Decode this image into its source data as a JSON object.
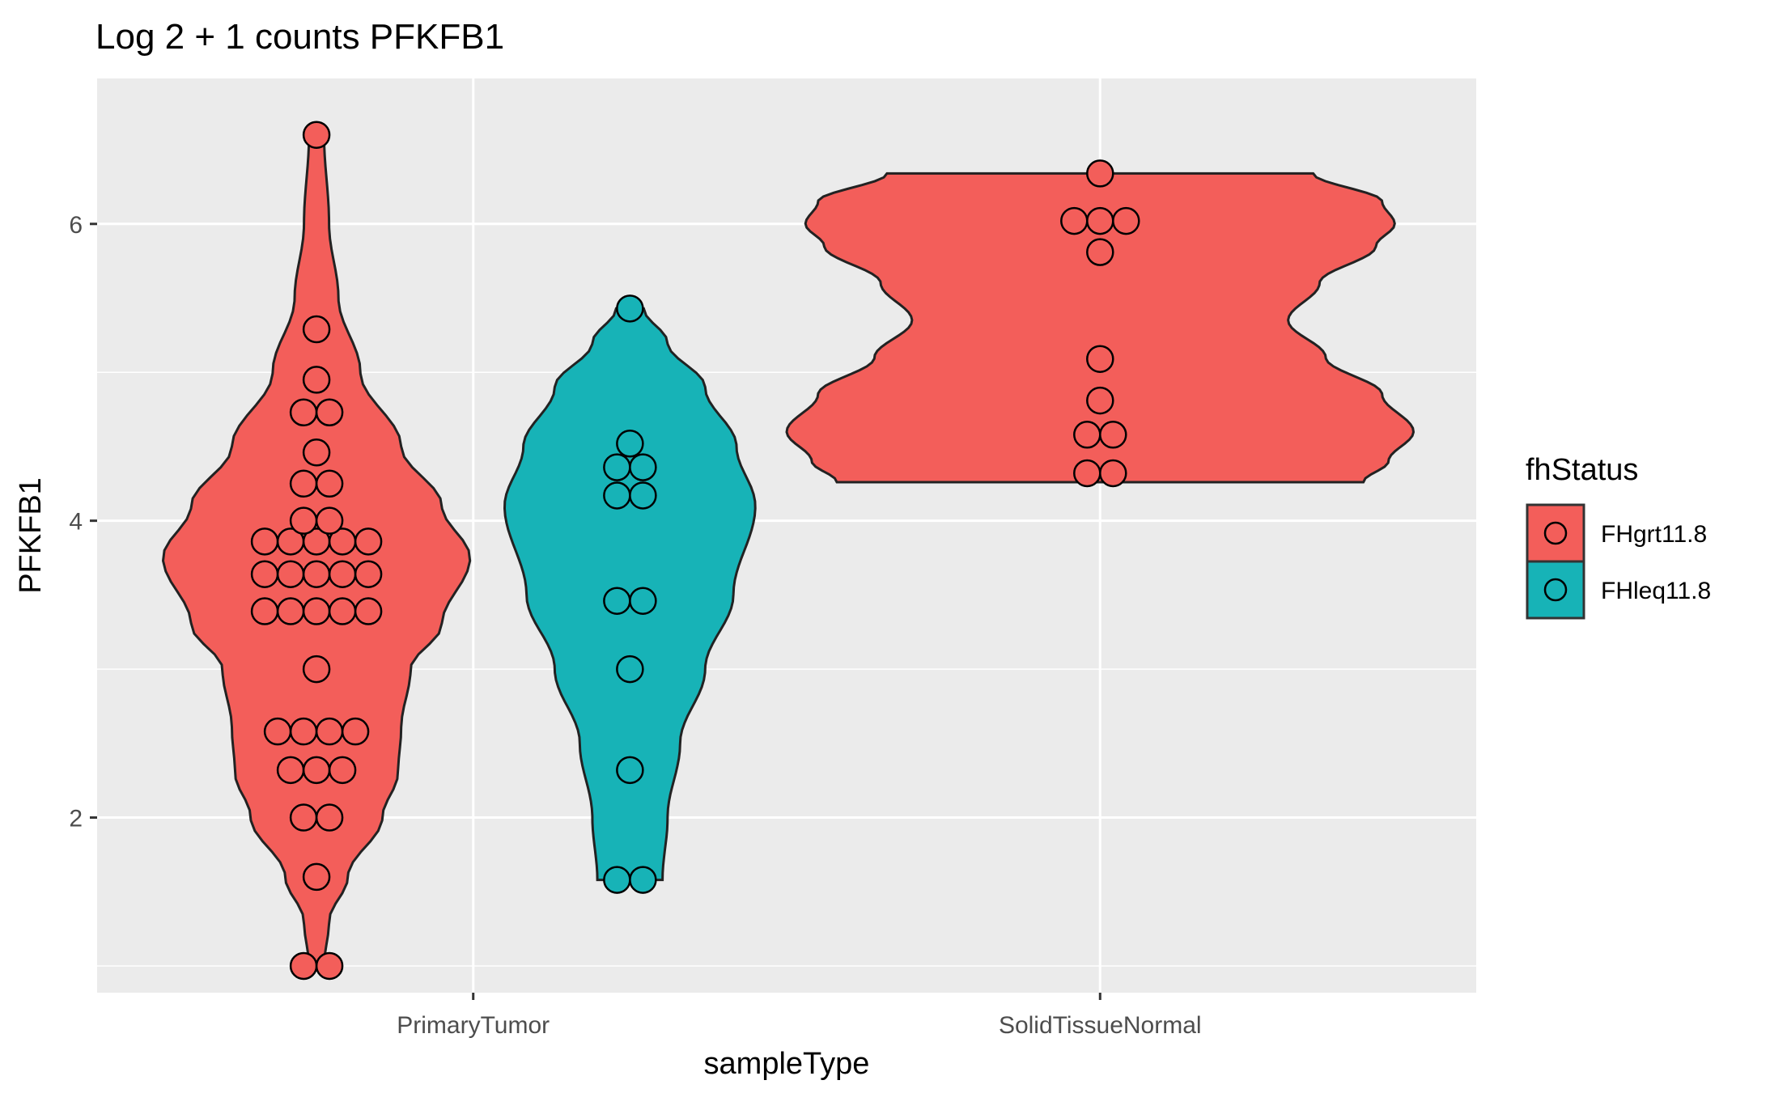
{
  "chart_data": {
    "type": "violin",
    "title": "Log 2 + 1 counts PFKFB1",
    "xlabel": "sampleType",
    "ylabel": "PFKFB1",
    "categories": [
      "PrimaryTumor",
      "SolidTissueNormal"
    ],
    "ylim": [
      0.82,
      6.98
    ],
    "yticks": [
      2,
      4,
      6
    ],
    "grid": true,
    "legend": {
      "title": "fhStatus",
      "position": "right",
      "entries": [
        {
          "label": "FHgrt11.8",
          "color": "#F35E5A"
        },
        {
          "label": "FHleq11.8",
          "color": "#17B3B7"
        }
      ]
    },
    "series": [
      {
        "name": "FHgrt11.8",
        "color": "#F35E5A",
        "groups": [
          {
            "category": "PrimaryTumor",
            "offset": -0.25,
            "values": [
              1.0,
              1.0,
              1.6,
              2.0,
              2.0,
              2.32,
              2.32,
              2.32,
              2.58,
              2.58,
              2.58,
              2.58,
              3.0,
              3.39,
              3.39,
              3.39,
              3.39,
              3.39,
              3.64,
              3.64,
              3.64,
              3.64,
              3.64,
              3.86,
              3.86,
              3.86,
              3.86,
              3.86,
              4.0,
              4.0,
              4.25,
              4.25,
              4.46,
              4.73,
              4.73,
              4.95,
              5.29,
              6.6
            ],
            "violin": [
              [
                1.0,
                0.012
              ],
              [
                1.3,
                0.02
              ],
              [
                1.6,
                0.05
              ],
              [
                2.0,
                0.105
              ],
              [
                2.3,
                0.13
              ],
              [
                2.6,
                0.135
              ],
              [
                3.0,
                0.15
              ],
              [
                3.3,
                0.2
              ],
              [
                3.75,
                0.245
              ],
              [
                4.1,
                0.2
              ],
              [
                4.5,
                0.135
              ],
              [
                5.0,
                0.07
              ],
              [
                5.5,
                0.035
              ],
              [
                6.0,
                0.02
              ],
              [
                6.6,
                0.012
              ]
            ]
          },
          {
            "category": "SolidTissueNormal",
            "offset": 0,
            "values": [
              4.32,
              4.32,
              4.58,
              4.58,
              4.81,
              5.09,
              5.81,
              6.02,
              6.02,
              6.02,
              6.34
            ],
            "violin": [
              [
                4.26,
                0.42
              ],
              [
                4.4,
                0.46
              ],
              [
                4.6,
                0.5
              ],
              [
                4.85,
                0.45
              ],
              [
                5.1,
                0.36
              ],
              [
                5.35,
                0.3
              ],
              [
                5.6,
                0.35
              ],
              [
                5.85,
                0.44
              ],
              [
                6.0,
                0.47
              ],
              [
                6.15,
                0.45
              ],
              [
                6.34,
                0.34
              ]
            ]
          }
        ]
      },
      {
        "name": "FHleq11.8",
        "color": "#17B3B7",
        "groups": [
          {
            "category": "PrimaryTumor",
            "offset": 0.25,
            "values": [
              1.58,
              1.58,
              2.32,
              3.0,
              3.46,
              3.46,
              4.17,
              4.17,
              4.36,
              4.36,
              4.52,
              5.43
            ],
            "violin": [
              [
                1.58,
                0.052
              ],
              [
                2.0,
                0.06
              ],
              [
                2.5,
                0.08
              ],
              [
                3.0,
                0.12
              ],
              [
                3.5,
                0.165
              ],
              [
                4.1,
                0.2
              ],
              [
                4.5,
                0.17
              ],
              [
                4.9,
                0.12
              ],
              [
                5.2,
                0.06
              ],
              [
                5.43,
                0.022
              ]
            ]
          }
        ]
      }
    ]
  }
}
